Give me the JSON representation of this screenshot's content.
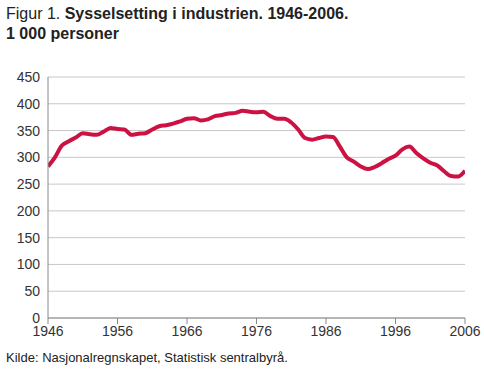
{
  "chart_data": {
    "type": "line",
    "title": "Figur 1. Sysselsetting i industrien. 1946-2006.",
    "subtitle": "1 000 personer",
    "source": "Kilde: Nasjonalregnskapet, Statistisk sentralbyrå.",
    "x": [
      1946,
      1947,
      1948,
      1949,
      1950,
      1951,
      1952,
      1953,
      1954,
      1955,
      1956,
      1957,
      1958,
      1959,
      1960,
      1961,
      1962,
      1963,
      1964,
      1965,
      1966,
      1967,
      1968,
      1969,
      1970,
      1971,
      1972,
      1973,
      1974,
      1975,
      1976,
      1977,
      1978,
      1979,
      1980,
      1981,
      1982,
      1983,
      1984,
      1985,
      1986,
      1987,
      1988,
      1989,
      1990,
      1991,
      1992,
      1993,
      1994,
      1995,
      1996,
      1997,
      1998,
      1999,
      2000,
      2001,
      2002,
      2003,
      2004,
      2005,
      2006
    ],
    "values": [
      283,
      300,
      322,
      330,
      337,
      345,
      343,
      342,
      348,
      355,
      353,
      352,
      342,
      344,
      345,
      352,
      358,
      360,
      363,
      367,
      372,
      373,
      369,
      371,
      377,
      379,
      382,
      383,
      387,
      385,
      384,
      385,
      377,
      372,
      372,
      365,
      352,
      336,
      333,
      336,
      339,
      338,
      320,
      300,
      292,
      283,
      278,
      282,
      289,
      297,
      303,
      315,
      320,
      308,
      298,
      290,
      285,
      274,
      265,
      264,
      275
    ],
    "color": "#cc1242",
    "xlim": [
      1946,
      2006
    ],
    "xticks": [
      1946,
      1956,
      1966,
      1976,
      1986,
      1996,
      2006
    ],
    "ylim": [
      0,
      450
    ],
    "yticks": [
      0,
      50,
      100,
      150,
      200,
      250,
      300,
      350,
      400,
      450
    ],
    "grid": true
  }
}
